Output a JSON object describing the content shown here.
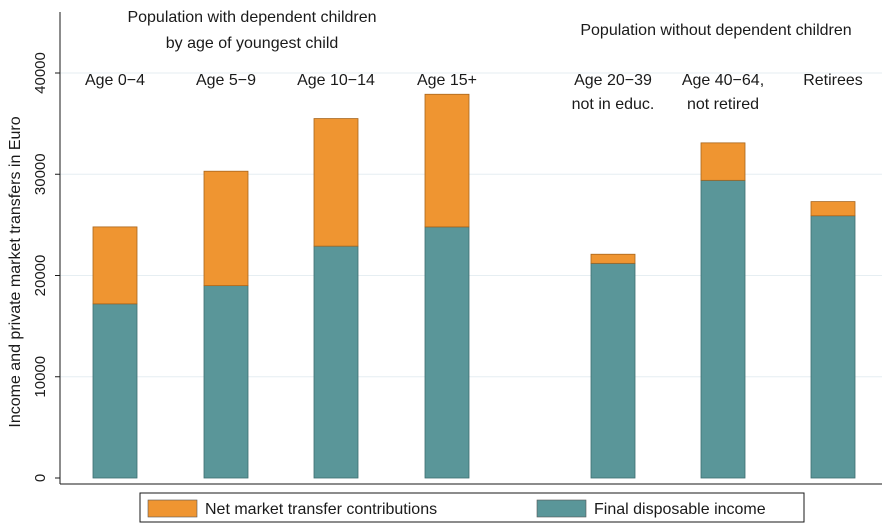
{
  "chart_data": {
    "type": "bar",
    "stacked": true,
    "ylabel": "Income and private market transfers in Euro",
    "ylim": [
      0,
      42000
    ],
    "yticks": [
      "0",
      "10000",
      "20000",
      "30000",
      "40000"
    ],
    "grid": true,
    "groups": [
      {
        "title_lines": [
          "Population with dependent children",
          "by age of youngest child"
        ]
      },
      {
        "title_lines": [
          "Population without dependent children"
        ]
      }
    ],
    "categories": [
      {
        "label_lines": [
          "Age 0−4"
        ]
      },
      {
        "label_lines": [
          "Age 5−9"
        ]
      },
      {
        "label_lines": [
          "Age 10−14"
        ]
      },
      {
        "label_lines": [
          "Age 15+"
        ]
      },
      {
        "label_lines": [
          "Age 20−39",
          "not in educ."
        ]
      },
      {
        "label_lines": [
          "Age 40−64,",
          "not retired"
        ]
      },
      {
        "label_lines": [
          "Retirees"
        ]
      }
    ],
    "series": [
      {
        "name": "Final disposable income",
        "color": "#5a9699",
        "values": [
          17200,
          19000,
          22900,
          24800,
          21200,
          29400,
          25900
        ]
      },
      {
        "name": "Net market transfer contributions",
        "color": "#ef9531",
        "values": [
          7600,
          11300,
          12600,
          13100,
          900,
          3700,
          1400
        ]
      }
    ],
    "legend": {
      "position": "bottom",
      "order": [
        "Net market transfer contributions",
        "Final disposable income"
      ]
    }
  }
}
